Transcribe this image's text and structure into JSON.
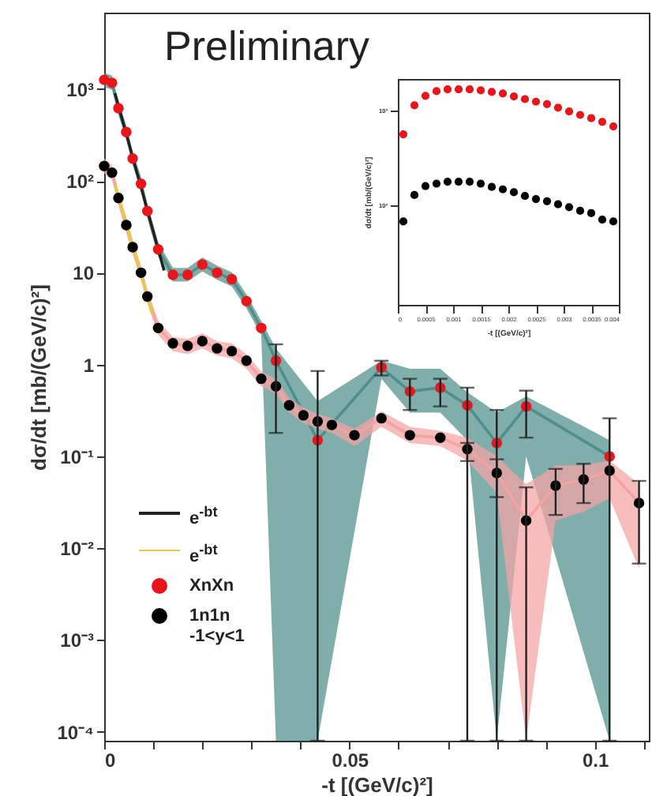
{
  "chart_data": [
    {
      "type": "scatter",
      "xlabel": "-t [(GeV/c)²]",
      "ylabel": "dσ/dt [mb/(GeV/c)²]",
      "annotations": [
        "Preliminary"
      ],
      "log": "y",
      "legend": "bottom left",
      "xlim": [
        0,
        0.111
      ],
      "xticks": [
        0,
        {
          "value": 0.01,
          "label": null
        },
        {
          "value": 0.02,
          "label": null
        },
        {
          "value": 0.03,
          "label": null
        },
        {
          "value": 0.04,
          "label": null
        },
        0.05,
        {
          "value": 0.06,
          "label": null
        },
        {
          "value": 0.07,
          "label": null
        },
        {
          "value": 0.08,
          "label": null
        },
        {
          "value": 0.09,
          "label": null
        },
        0.1,
        {
          "value": 0.11,
          "label": null
        }
      ],
      "ylim": [
        8e-05,
        6800
      ],
      "yticks": [
        {
          "value": 0.0001,
          "label": "10⁻⁴"
        },
        {
          "value": 0.001,
          "label": "10⁻³"
        },
        {
          "value": 0.01,
          "label": "10⁻²"
        },
        {
          "value": 0.1,
          "label": "10⁻¹"
        },
        1,
        10,
        {
          "value": 100,
          "label": "10²"
        },
        {
          "value": 1000,
          "label": "10³"
        }
      ],
      "series": [
        {
          "type": "line",
          "color": "#4f8f8a",
          "x": [
            0,
            0.0016,
            0.0029,
            0.0045,
            0.0058,
            0.0075,
            0.0088,
            0.011,
            0.014,
            0.017,
            0.02,
            0.023,
            0.026,
            0.029,
            0.032,
            0.035,
            0.0435,
            0.0565,
            0.0623,
            0.0685,
            0.074,
            0.08,
            0.086,
            0.103
          ],
          "values": [
            1260,
            1170,
            620,
            340,
            175,
            93,
            47,
            18,
            9.5,
            9.5,
            12.3,
            10,
            8.5,
            4.9,
            2.5,
            1.1,
            0.15,
            0.93,
            0.51,
            0.56,
            0.36,
            0.14,
            0.35,
            0.1
          ],
          "lower": [
            1050,
            980,
            520,
            285,
            147,
            78,
            39,
            15,
            8,
            8,
            10.3,
            8.4,
            7.1,
            4.1,
            2.1,
            8e-05,
            8e-05,
            0.7,
            0.3,
            0.3,
            0.15,
            8e-05,
            0.1,
            8e-05
          ],
          "upper": [
            1500,
            1400,
            740,
            405,
            210,
            111,
            56,
            21.5,
            11.3,
            11.3,
            14.7,
            12,
            10.1,
            5.8,
            3,
            1.5,
            0.4,
            1.1,
            0.9,
            0.9,
            0.5,
            0.3,
            0.45,
            0.15
          ]
        },
        {
          "type": "line",
          "color": "#f4a3a3",
          "x": [
            0,
            0.0016,
            0.0029,
            0.0045,
            0.0058,
            0.0075,
            0.0088,
            0.011,
            0.014,
            0.017,
            0.02,
            0.023,
            0.026,
            0.029,
            0.032,
            0.035,
            0.0377,
            0.0406,
            0.0435,
            0.0464,
            0.051,
            0.0565,
            0.0623,
            0.0685,
            0.074,
            0.08,
            0.086,
            0.092,
            0.0977,
            0.103,
            0.109
          ],
          "values": [
            145,
            123,
            65,
            33,
            19,
            10,
            5.5,
            2.5,
            1.7,
            1.6,
            1.8,
            1.5,
            1.4,
            1.1,
            0.7,
            0.58,
            0.36,
            0.28,
            0.24,
            0.22,
            0.17,
            0.26,
            0.17,
            0.16,
            0.12,
            0.066,
            0.02,
            0.048,
            0.056,
            0.07,
            0.031
          ],
          "lower": [
            120,
            102,
            54,
            27,
            15.8,
            8.3,
            4.6,
            2.1,
            1.4,
            1.3,
            1.5,
            1.25,
            1.17,
            0.9,
            0.58,
            0.48,
            0.3,
            0.23,
            0.2,
            0.18,
            0.13,
            0.21,
            0.14,
            0.13,
            0.09,
            0.04,
            8e-05,
            0.02,
            0.025,
            0.035,
            0.006
          ],
          "upper": [
            175,
            148,
            78,
            40,
            23,
            12,
            6.6,
            3,
            2,
            1.9,
            2.2,
            1.8,
            1.7,
            1.3,
            0.84,
            0.7,
            0.43,
            0.34,
            0.29,
            0.26,
            0.2,
            0.31,
            0.21,
            0.19,
            0.16,
            0.1,
            0.05,
            0.08,
            0.08,
            0.09,
            0.05
          ]
        },
        {
          "type": "line",
          "name": "e$^{-bt}$",
          "color": "#222222",
          "x": [
            0.0022,
            0.0122
          ],
          "values": [
            900,
            10.6
          ]
        },
        {
          "type": "line",
          "name": "e$^{-bt}$",
          "color": "#e8c840",
          "x": [
            0.0022,
            0.0098
          ],
          "values": [
            90,
            3.6
          ]
        },
        {
          "name": "XnXn",
          "color": "#e8151b",
          "x": [
            0,
            0.0016,
            0.0029,
            0.0045,
            0.0058,
            0.0075,
            0.0088,
            0.011,
            0.014,
            0.017,
            0.02,
            0.023,
            0.026,
            0.029,
            0.032,
            0.035,
            0.0435,
            0.0565,
            0.0623,
            0.0685,
            0.074,
            0.08,
            0.086,
            0.103
          ],
          "values": [
            1260,
            1170,
            620,
            340,
            175,
            93,
            47,
            18,
            9.5,
            9.5,
            12.3,
            10,
            8.5,
            4.9,
            2.5,
            1.1,
            0.15,
            0.93,
            0.51,
            0.56,
            0.36,
            0.14,
            0.35,
            0.1
          ],
          "marker": "circle",
          "errors": [
            null,
            null,
            null,
            null,
            null,
            null,
            null,
            null,
            null,
            null,
            null,
            null,
            null,
            null,
            null,
            [
              0.18,
              1.66
            ],
            [
              8e-05,
              0.85
            ],
            [
              0.76,
              1.1
            ],
            [
              0.32,
              0.7
            ],
            [
              0.35,
              0.7
            ],
            [
              8e-05,
              0.56
            ],
            [
              8e-05,
              0.32
            ],
            [
              0.16,
              0.52
            ],
            [
              8e-05,
              0.26
            ]
          ]
        },
        {
          "name": "1n1n\n-1<y<1",
          "color": "#000000",
          "x": [
            0,
            0.0016,
            0.0029,
            0.0045,
            0.0058,
            0.0075,
            0.0088,
            0.011,
            0.014,
            0.017,
            0.02,
            0.023,
            0.026,
            0.029,
            0.032,
            0.035,
            0.0377,
            0.0406,
            0.0435,
            0.0464,
            0.051,
            0.0565,
            0.0623,
            0.0685,
            0.074,
            0.08,
            0.086,
            0.092,
            0.0977,
            0.103,
            0.109
          ],
          "values": [
            145,
            123,
            65,
            33,
            19,
            10,
            5.5,
            2.5,
            1.7,
            1.6,
            1.8,
            1.5,
            1.4,
            1.1,
            0.7,
            0.58,
            0.36,
            0.28,
            0.24,
            0.22,
            0.17,
            0.26,
            0.17,
            0.16,
            0.12,
            0.066,
            0.02,
            0.048,
            0.056,
            0.07,
            0.031
          ],
          "marker": "circle",
          "errors": [
            null,
            null,
            null,
            null,
            null,
            null,
            null,
            null,
            null,
            null,
            null,
            null,
            null,
            null,
            null,
            null,
            null,
            null,
            null,
            null,
            null,
            null,
            null,
            null,
            [
              0.089,
              0.14
            ],
            [
              0.036,
              0.093
            ],
            [
              8e-05,
              0.046
            ],
            [
              0.023,
              0.073
            ],
            [
              0.031,
              0.083
            ],
            null,
            [
              0.0068,
              0.054
            ]
          ]
        }
      ]
    },
    {
      "type": "scatter",
      "xlabel": "-t [(GeV/c)²]",
      "ylabel": "dσ/dt [mb/(GeV/c)²]",
      "log": "y",
      "xlim": [
        0,
        0.004
      ],
      "xticks": [
        0,
        0.0005,
        0.001,
        0.0015,
        0.002,
        0.0025,
        0.003,
        0.0035,
        0.004
      ],
      "ylim": [
        9,
        2150
      ],
      "yticks": [
        {
          "value": 100,
          "label": "10²"
        },
        {
          "value": 1000,
          "label": "10³"
        }
      ],
      "x": [
        0.0001,
        0.0003,
        0.0005,
        0.0007,
        0.0009,
        0.0011,
        0.0013,
        0.0015,
        0.0017,
        0.0019,
        0.0021,
        0.0023,
        0.0025,
        0.0027,
        0.0029,
        0.0031,
        0.0033,
        0.0035,
        0.0037,
        0.0039
      ],
      "series": [
        {
          "color": "#e8151b",
          "marker": "circle",
          "values": [
            562,
            1136,
            1430,
            1600,
            1670,
            1670,
            1670,
            1630,
            1570,
            1510,
            1410,
            1320,
            1240,
            1170,
            1070,
            980,
            900,
            830,
            760,
            680
          ]
        },
        {
          "color": "#000000",
          "marker": "circle",
          "values": [
            68,
            129,
            160,
            170,
            178,
            178,
            178,
            170,
            157,
            148,
            138,
            126,
            117,
            111,
            103,
            96,
            88,
            83,
            71,
            68
          ]
        }
      ]
    }
  ]
}
